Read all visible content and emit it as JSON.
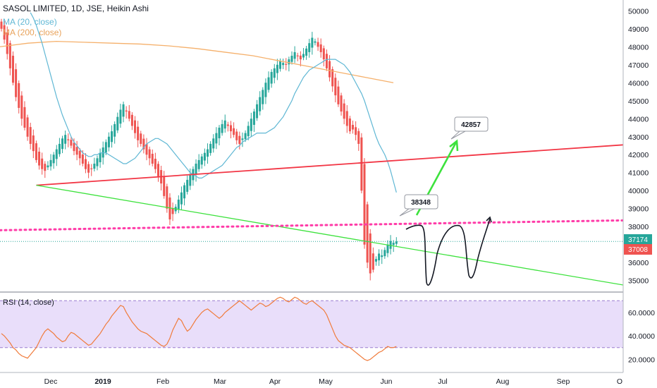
{
  "header": {
    "title": "SASOL LIMITED, 1D, JSE, Heikin Ashi",
    "ma20": "MA (20, close)",
    "ma200": "MA (200, close)"
  },
  "rsi": {
    "label": "RSI (14, close)"
  },
  "colors": {
    "up": "#26a69a",
    "down": "#ef5350",
    "ma20": "#5fb7d4",
    "ma200": "#f5b06b",
    "trend_red": "#f23645",
    "trend_green": "#3de23d",
    "dotted": "#ff3ba8",
    "rsi_line": "#f07b3b",
    "rsi_band": "#e9defa",
    "last_price": "#26a69a"
  },
  "price_axis": {
    "ticks": [
      35000,
      36000,
      37000,
      38000,
      39000,
      40000,
      41000,
      42000,
      43000,
      44000,
      45000,
      46000,
      47000,
      48000,
      49000,
      50000
    ]
  },
  "rsi_axis": {
    "ticks": [
      "20.0000",
      "40.0000",
      "60.0000"
    ]
  },
  "time_axis": {
    "labels": [
      "Dec",
      "2019",
      "Feb",
      "Mar",
      "Apr",
      "May",
      "Jun",
      "Jul",
      "Aug",
      "Sep",
      "O"
    ]
  },
  "tags": {
    "last": "37174",
    "prev": "37008"
  },
  "callouts": {
    "upper": "42857",
    "lower": "38348"
  },
  "chart_data": {
    "type": "candlestick",
    "title": "SASOL LIMITED, 1D, JSE, Heikin Ashi",
    "yrange": [
      34400,
      50600
    ],
    "x_range_months": [
      "Nov 2018",
      "Oct 2019"
    ],
    "closes": [
      49000,
      48400,
      47600,
      46800,
      46000,
      45200,
      44600,
      44000,
      43500,
      43000,
      42600,
      42200,
      41700,
      41400,
      41200,
      41100,
      41400,
      41700,
      42000,
      42300,
      42600,
      42900,
      43100,
      42800,
      42500,
      42200,
      42000,
      41800,
      41500,
      41200,
      41000,
      41200,
      41500,
      41800,
      42100,
      42400,
      42700,
      43000,
      43300,
      43700,
      44100,
      44500,
      44800,
      44400,
      44000,
      43600,
      43200,
      42800,
      42600,
      42300,
      42000,
      41800,
      41500,
      41200,
      40800,
      40400,
      39700,
      39000,
      38400,
      38700,
      39100,
      39500,
      39900,
      40300,
      40600,
      40900,
      41200,
      41500,
      41700,
      41900,
      42100,
      42300,
      42600,
      42900,
      43200,
      43500,
      43700,
      43900,
      43600,
      43300,
      43100,
      42800,
      42600,
      42900,
      43200,
      43600,
      44000,
      44400,
      44800,
      45200,
      45600,
      46000,
      46300,
      46600,
      46800,
      47000,
      47200,
      47100,
      47000,
      47300,
      47500,
      47700,
      47500,
      47300,
      47600,
      47900,
      48200,
      48500,
      48300,
      48000,
      47700,
      47300,
      46800,
      46300,
      45800,
      45300,
      44800,
      44400,
      44000,
      43600,
      43300,
      43400,
      43100,
      42600,
      40000,
      37000,
      36000,
      35400,
      35600,
      36200,
      36500,
      36400,
      36700,
      37000,
      37200,
      37100,
      37174
    ],
    "ma20": [
      49900,
      49600,
      49200,
      48700,
      48200,
      47600,
      47000,
      46400,
      45800,
      45200,
      44700,
      44200,
      43800,
      43400,
      43000,
      42700,
      42500,
      42300,
      42100,
      42000,
      41900,
      41900,
      42000,
      42000,
      42100,
      42100,
      42100,
      42000,
      41900,
      41800,
      41700,
      41600,
      41500,
      41500,
      41600,
      41700,
      41800,
      42000,
      42200,
      42400,
      42600,
      42700,
      42800,
      42900,
      42900,
      42800,
      42700,
      42600,
      42400,
      42200,
      42000,
      41800,
      41600,
      41400,
      41200,
      41000,
      40900,
      40800,
      40700,
      40700,
      40800,
      40900,
      41000,
      41100,
      41200,
      41300,
      41400,
      41600,
      41800,
      42000,
      42200,
      42400,
      42500,
      42700,
      42800,
      42900,
      43000,
      43100,
      43200,
      43200,
      43200,
      43200,
      43300,
      43400,
      43500,
      43700,
      43900,
      44100,
      44400,
      44700,
      45000,
      45400,
      45700,
      46000,
      46300,
      46500,
      46700,
      46800,
      46900,
      47000,
      47100,
      47200,
      47300,
      47300,
      47300,
      47300,
      47200,
      47100,
      47000,
      46800,
      46600,
      46300,
      46000,
      45700,
      45400,
      45000,
      44500,
      44000,
      43500,
      43000,
      42600,
      42300,
      42000,
      41600,
      41100,
      40500,
      39900
    ],
    "ma200": [
      48000,
      48200,
      48300,
      48250,
      48200,
      48150,
      48050,
      47900,
      47700,
      47500,
      47200,
      46900,
      46600,
      46300,
      46000
    ],
    "trendlines": [
      {
        "name": "resistance",
        "from": [
          -49,
          40300
        ],
        "to": [
          212,
          43200
        ]
      },
      {
        "name": "support",
        "from": [
          -49,
          40300
        ],
        "to": [
          166,
          34400
        ]
      },
      {
        "name": "dotted",
        "from": [
          -62,
          37800
        ],
        "to": [
          214,
          38500
        ]
      }
    ],
    "rsi_values": [
      42,
      40,
      37,
      34,
      30,
      28,
      25,
      23,
      22,
      21,
      24,
      27,
      30,
      35,
      40,
      44,
      46,
      44,
      42,
      39,
      37,
      35,
      36,
      40,
      43,
      42,
      40,
      38,
      36,
      34,
      32,
      33,
      36,
      39,
      42,
      46,
      50,
      53,
      57,
      60,
      63,
      66,
      65,
      60,
      56,
      52,
      49,
      46,
      44,
      43,
      42,
      40,
      38,
      36,
      34,
      32,
      31,
      33,
      38,
      45,
      50,
      55,
      53,
      48,
      44,
      46,
      50,
      54,
      57,
      60,
      62,
      63,
      61,
      59,
      57,
      55,
      57,
      60,
      62,
      64,
      66,
      68,
      70,
      68,
      66,
      64,
      62,
      64,
      66,
      68,
      67,
      65,
      66,
      68,
      70,
      72,
      73,
      72,
      70,
      69,
      71,
      73,
      72,
      70,
      68,
      67,
      69,
      70,
      68,
      66,
      64,
      62,
      58,
      52,
      46,
      40,
      36,
      34,
      32,
      31,
      30,
      28,
      26,
      24,
      22,
      20,
      19,
      20,
      22,
      24,
      26,
      27,
      29,
      31,
      30,
      30,
      31
    ],
    "rsi_band": [
      30,
      70
    ],
    "rsi_yrange": [
      10,
      75
    ]
  }
}
